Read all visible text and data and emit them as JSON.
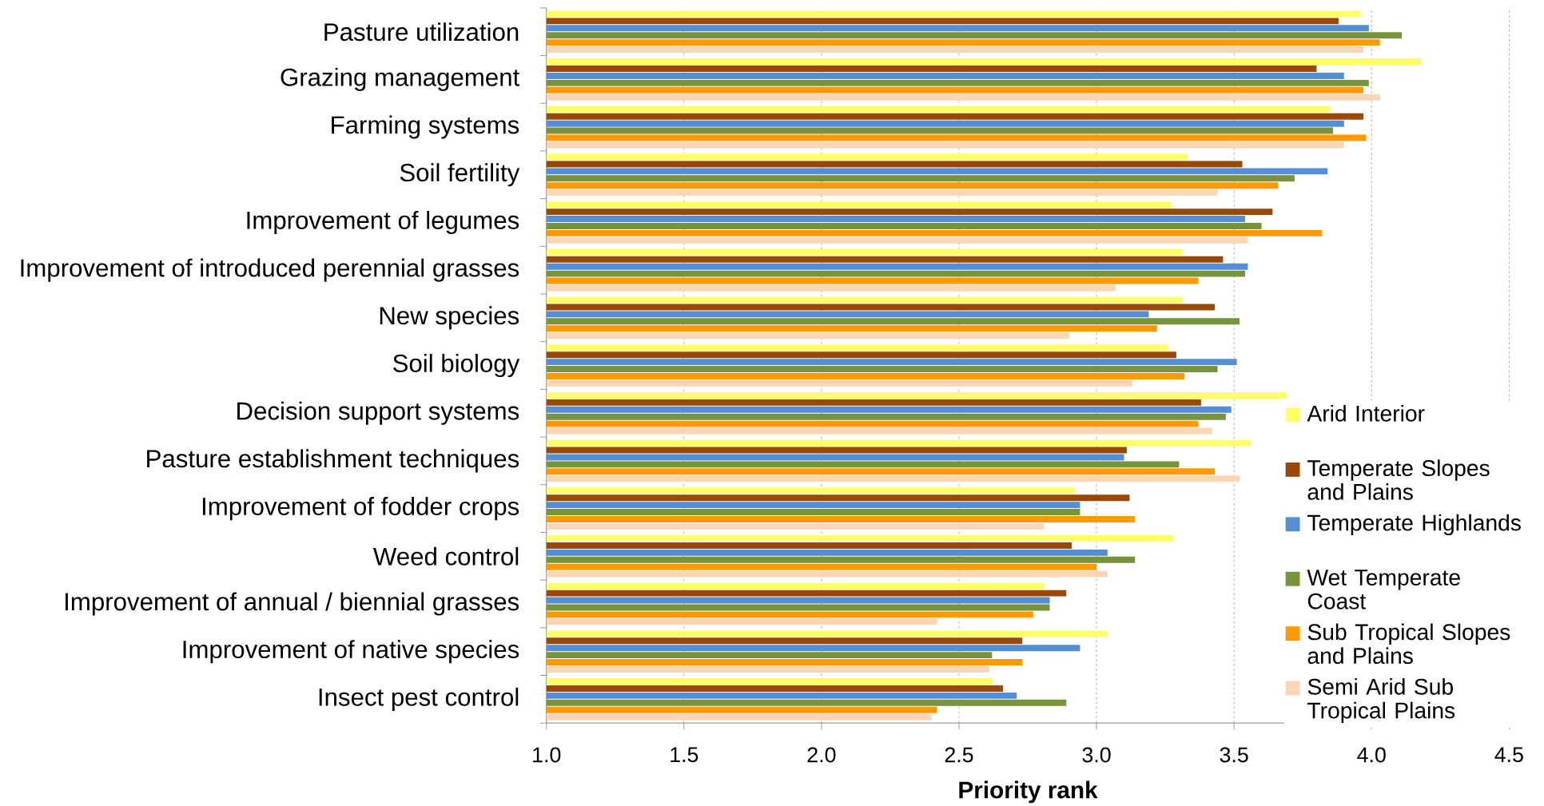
{
  "chart_data": {
    "type": "bar",
    "orientation": "horizontal",
    "xlabel": "Priority rank",
    "categories": [
      "Pasture utilization",
      "Grazing management",
      "Farming systems",
      "Soil fertility",
      "Improvement of legumes",
      "Improvement of introduced perennial grasses",
      "New species",
      "Soil biology",
      "Decision support systems",
      "Pasture establishment techniques",
      "Improvement of fodder crops",
      "Weed control",
      "Improvement of annual / biennial grasses",
      "Improvement of native species",
      "Insect pest control"
    ],
    "series": [
      {
        "name": "Arid Interior",
        "color": "#ffff66",
        "values": [
          3.96,
          4.18,
          3.85,
          3.33,
          3.27,
          3.31,
          3.31,
          3.26,
          3.69,
          3.56,
          2.92,
          3.28,
          2.81,
          3.04,
          2.62
        ]
      },
      {
        "name": "Temperate Slopes and Plains",
        "color": "#984807",
        "values": [
          3.88,
          3.8,
          3.97,
          3.53,
          3.64,
          3.46,
          3.43,
          3.29,
          3.38,
          3.11,
          3.12,
          2.91,
          2.89,
          2.73,
          2.66
        ]
      },
      {
        "name": "Temperate Highlands",
        "color": "#558ed5",
        "values": [
          3.99,
          3.9,
          3.9,
          3.84,
          3.54,
          3.55,
          3.19,
          3.51,
          3.49,
          3.1,
          2.94,
          3.04,
          2.83,
          2.94,
          2.71
        ]
      },
      {
        "name": "Wet Temperate Coast",
        "color": "#77933c",
        "values": [
          4.11,
          3.99,
          3.86,
          3.72,
          3.6,
          3.54,
          3.52,
          3.44,
          3.47,
          3.3,
          2.94,
          3.14,
          2.83,
          2.62,
          2.89
        ]
      },
      {
        "name": "Sub Tropical Slopes and Plains",
        "color": "#ff9900",
        "values": [
          4.03,
          3.97,
          3.98,
          3.66,
          3.82,
          3.37,
          3.22,
          3.32,
          3.37,
          3.43,
          3.14,
          3.0,
          2.77,
          2.73,
          2.42
        ]
      },
      {
        "name": "Semi Arid Sub Tropical Plains",
        "color": "#fcd5b5",
        "values": [
          3.97,
          4.03,
          3.9,
          3.44,
          3.55,
          3.07,
          2.9,
          3.13,
          3.42,
          3.52,
          2.81,
          3.04,
          2.42,
          2.61,
          2.4
        ]
      }
    ],
    "xlim": [
      1.0,
      4.5
    ],
    "xticks": [
      {
        "value": 1.0,
        "label": "1.0"
      },
      {
        "value": 1.5,
        "label": "1.5"
      },
      {
        "value": 2.0,
        "label": "2.0"
      },
      {
        "value": 2.5,
        "label": "2.5"
      },
      {
        "value": 3.0,
        "label": "3.0"
      },
      {
        "value": 3.5,
        "label": "3.5"
      },
      {
        "value": 4.0,
        "label": "4.0"
      },
      {
        "value": 4.5,
        "label": "4.5"
      }
    ],
    "grid": "x",
    "legend": "bottom right"
  }
}
